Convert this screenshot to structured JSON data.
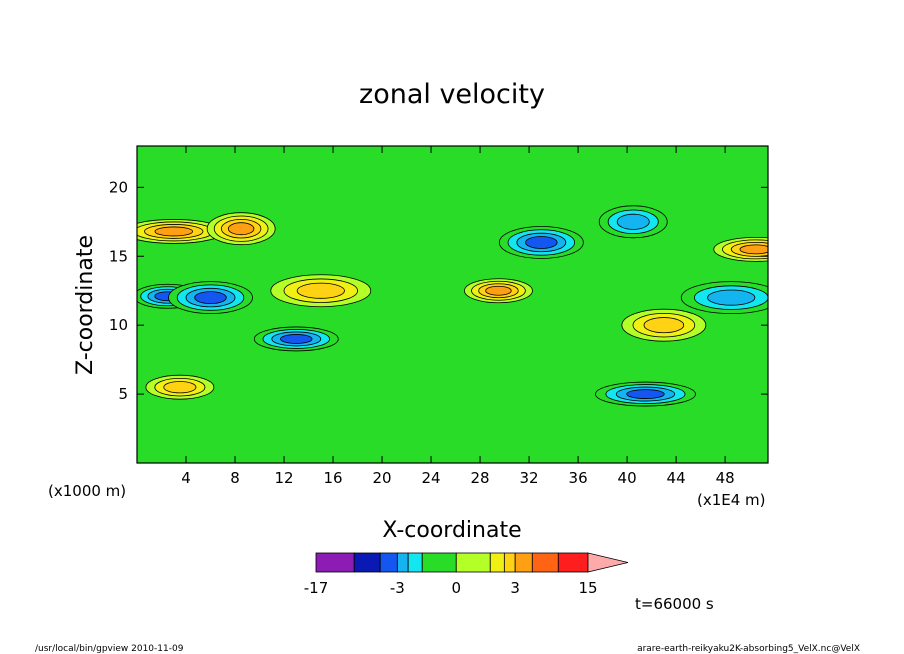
{
  "chart_data": {
    "type": "heatmap",
    "title": "zonal velocity",
    "xlabel": "X-coordinate",
    "ylabel": "Z-coordinate",
    "x_unit_left": "(x1000 m)",
    "x_unit_right": "(x1E4 m)",
    "xlim": [
      0,
      51.5
    ],
    "ylim": [
      0,
      23
    ],
    "x_ticks": [
      4,
      8,
      12,
      16,
      20,
      24,
      28,
      32,
      36,
      40,
      44,
      48
    ],
    "y_ticks": [
      5,
      10,
      15,
      20
    ],
    "colorbar": {
      "levels": [
        -17,
        -9,
        -5,
        -3,
        -2,
        -1,
        0,
        1,
        2,
        3,
        5,
        9,
        15
      ],
      "labels": [
        {
          "value": -17,
          "text": "-17"
        },
        {
          "value": -3,
          "text": "-3"
        },
        {
          "value": 0,
          "text": "0"
        },
        {
          "value": 3,
          "text": "3"
        },
        {
          "value": 15,
          "text": "15"
        }
      ],
      "colors": [
        "#e01cb4",
        "#8c1cb4",
        "#0a18b4",
        "#1456f0",
        "#14b4f0",
        "#14e6f0",
        "#28dc28",
        "#b4ff28",
        "#f0f014",
        "#ffd214",
        "#ffa014",
        "#ff6414",
        "#ff1e1e",
        "#ff7878",
        "#ffaaaa"
      ],
      "extend_max": true
    },
    "features": [
      {
        "x": 2.5,
        "z": 12.1,
        "value": -6
      },
      {
        "x": 6.0,
        "z": 12.0,
        "value": -6
      },
      {
        "x": 3.0,
        "z": 16.8,
        "value": 6
      },
      {
        "x": 8.5,
        "z": 17.0,
        "value": 5
      },
      {
        "x": 13.0,
        "z": 9.0,
        "value": -5
      },
      {
        "x": 15.0,
        "z": 12.5,
        "value": 4
      },
      {
        "x": 29.5,
        "z": 12.5,
        "value": 6
      },
      {
        "x": 33.0,
        "z": 16.0,
        "value": -5
      },
      {
        "x": 41.5,
        "z": 5.0,
        "value": -6
      },
      {
        "x": 40.5,
        "z": 17.5,
        "value": -4
      },
      {
        "x": 50.5,
        "z": 15.5,
        "value": 5
      },
      {
        "x": 48.5,
        "z": 12.0,
        "value": -3
      },
      {
        "x": 3.5,
        "z": 5.5,
        "value": 4
      },
      {
        "x": 43.0,
        "z": 10.0,
        "value": 3
      }
    ]
  },
  "footer": {
    "time": "t=66000 s",
    "left": "/usr/local/bin/gpview  2010-11-09",
    "right": "arare-earth-reikyaku2K-absorbing5_VelX.nc@VelX"
  }
}
